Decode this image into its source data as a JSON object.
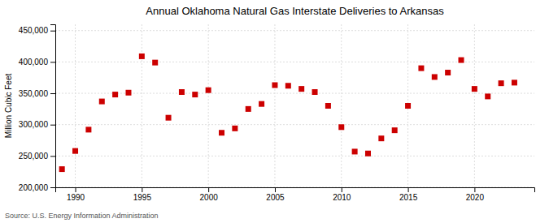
{
  "chart_data": {
    "type": "scatter",
    "title": "Annual Oklahoma Natural Gas Interstate Deliveries to Arkansas",
    "ylabel": "Million Cubic Feet",
    "source": "Source: U.S. Energy Information Administration",
    "x": [
      1989,
      1990,
      1991,
      1992,
      1993,
      1994,
      1995,
      1996,
      1997,
      1998,
      1999,
      2000,
      2001,
      2002,
      2003,
      2004,
      2005,
      2006,
      2007,
      2008,
      2009,
      2010,
      2011,
      2012,
      2013,
      2014,
      2015,
      2016,
      2017,
      2018,
      2019,
      2020,
      2021,
      2022,
      2023
    ],
    "values": [
      229000,
      258000,
      292000,
      337000,
      348000,
      351000,
      409000,
      399000,
      311000,
      352000,
      348000,
      355000,
      287000,
      294000,
      325000,
      333000,
      363000,
      362000,
      357000,
      352000,
      330000,
      296000,
      257000,
      254000,
      278000,
      291000,
      330000,
      390000,
      376000,
      383000,
      403000,
      357000,
      345000,
      366000,
      367000
    ],
    "color": "#cc0000",
    "marker": "square",
    "xlim": [
      1988.5,
      2024.5
    ],
    "ylim": [
      200000,
      460000
    ],
    "xticks": [
      1990,
      1995,
      2000,
      2005,
      2010,
      2015,
      2020
    ],
    "yticks": [
      {
        "value": 200000,
        "label": "200,000"
      },
      {
        "value": 250000,
        "label": "250,000"
      },
      {
        "value": 300000,
        "label": "300,000"
      },
      {
        "value": 350000,
        "label": "350,000"
      },
      {
        "value": 400000,
        "label": "400,000"
      },
      {
        "value": 450000,
        "label": "450,000"
      }
    ],
    "grid": true
  }
}
